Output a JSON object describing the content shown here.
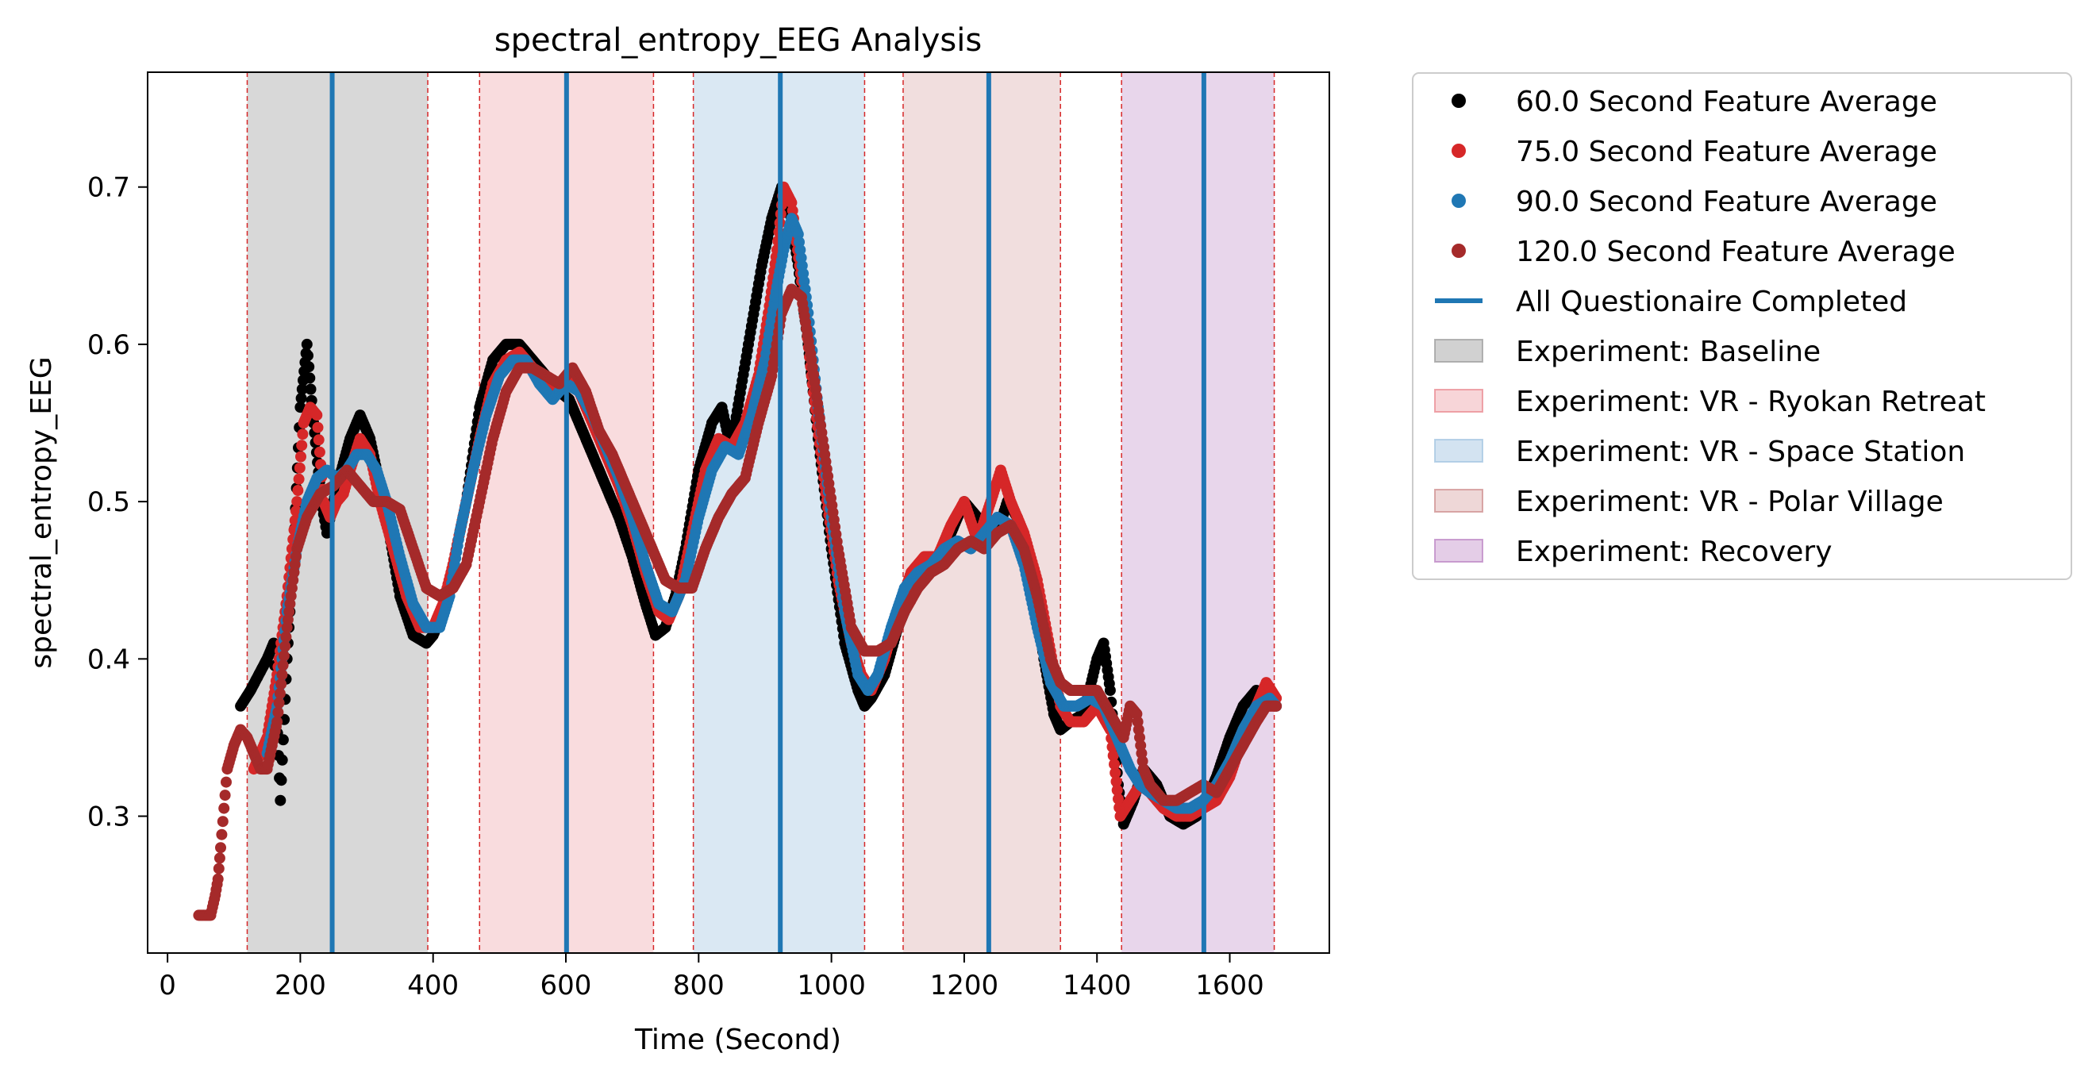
{
  "chart_data": {
    "type": "scatter",
    "title": "spectral_entropy_EEG Analysis",
    "xlabel": "Time (Second)",
    "ylabel": "spectral_entropy_EEG",
    "xlim": [
      -30,
      1750
    ],
    "ylim": [
      0.213,
      0.773
    ],
    "xticks": [
      0,
      200,
      400,
      600,
      800,
      1000,
      1200,
      1400,
      1600
    ],
    "yticks": [
      0.3,
      0.4,
      0.5,
      0.6,
      0.7
    ],
    "grid": false,
    "legend_position": "outside-right",
    "phases": [
      {
        "name": "Experiment: Baseline",
        "start": 120,
        "end": 392,
        "color": "#999999",
        "alpha": 0.38
      },
      {
        "name": "Experiment: VR - Ryokan Retreat",
        "start": 470,
        "end": 732,
        "color": "#e8828a",
        "alpha": 0.28
      },
      {
        "name": "Experiment: VR - Space Station",
        "start": 792,
        "end": 1050,
        "color": "#9ec2e0",
        "alpha": 0.38
      },
      {
        "name": "Experiment: VR - Polar Village",
        "start": 1108,
        "end": 1345,
        "color": "#cc8888",
        "alpha": 0.28
      },
      {
        "name": "Experiment: Recovery",
        "start": 1437,
        "end": 1667,
        "color": "#b87ec0",
        "alpha": 0.32
      }
    ],
    "vlines": {
      "name": "All Questionaire Completed",
      "x": [
        248,
        601,
        923,
        1237,
        1561
      ],
      "color": "#1f77b4"
    },
    "series": [
      {
        "name": "60.0 Second Feature Average",
        "color": "#000000",
        "x": [
          110,
          125,
          150,
          160,
          170,
          180,
          190,
          200,
          210,
          220,
          232,
          240,
          250,
          262,
          275,
          290,
          305,
          315,
          330,
          350,
          370,
          390,
          400,
          415,
          430,
          450,
          470,
          490,
          510,
          530,
          550,
          570,
          590,
          605,
          620,
          640,
          660,
          680,
          700,
          720,
          735,
          750,
          765,
          780,
          800,
          820,
          835,
          845,
          855,
          875,
          895,
          910,
          925,
          935,
          950,
          965,
          980,
          1000,
          1020,
          1040,
          1050,
          1060,
          1080,
          1100,
          1120,
          1140,
          1160,
          1180,
          1200,
          1220,
          1235,
          1250,
          1265,
          1280,
          1300,
          1320,
          1335,
          1345,
          1360,
          1380,
          1400,
          1410,
          1420,
          1432,
          1440,
          1455,
          1470,
          1490,
          1510,
          1530,
          1550,
          1565,
          1580,
          1600,
          1620,
          1640,
          1655,
          1670
        ],
        "y": [
          0.37,
          0.38,
          0.4,
          0.41,
          0.31,
          0.4,
          0.47,
          0.56,
          0.6,
          0.55,
          0.5,
          0.48,
          0.5,
          0.52,
          0.54,
          0.555,
          0.54,
          0.52,
          0.49,
          0.44,
          0.415,
          0.41,
          0.415,
          0.43,
          0.46,
          0.5,
          0.56,
          0.59,
          0.6,
          0.6,
          0.59,
          0.58,
          0.57,
          0.565,
          0.55,
          0.53,
          0.51,
          0.49,
          0.465,
          0.435,
          0.415,
          0.42,
          0.44,
          0.47,
          0.52,
          0.55,
          0.56,
          0.54,
          0.55,
          0.6,
          0.65,
          0.68,
          0.7,
          0.69,
          0.65,
          0.6,
          0.54,
          0.47,
          0.41,
          0.38,
          0.37,
          0.375,
          0.39,
          0.42,
          0.44,
          0.455,
          0.46,
          0.48,
          0.5,
          0.49,
          0.475,
          0.48,
          0.5,
          0.49,
          0.46,
          0.4,
          0.365,
          0.355,
          0.36,
          0.365,
          0.4,
          0.41,
          0.38,
          0.32,
          0.295,
          0.31,
          0.33,
          0.32,
          0.3,
          0.295,
          0.3,
          0.31,
          0.325,
          0.35,
          0.37,
          0.38,
          0.375,
          0.37
        ]
      },
      {
        "name": "75.0 Second Feature Average",
        "color": "#d62728",
        "x": [
          130,
          150,
          165,
          180,
          195,
          205,
          215,
          225,
          235,
          245,
          255,
          265,
          275,
          290,
          305,
          320,
          340,
          360,
          380,
          400,
          415,
          430,
          450,
          470,
          490,
          510,
          530,
          550,
          570,
          590,
          605,
          620,
          640,
          660,
          680,
          700,
          720,
          740,
          755,
          770,
          790,
          810,
          830,
          850,
          870,
          890,
          905,
          918,
          928,
          940,
          955,
          970,
          990,
          1010,
          1030,
          1045,
          1060,
          1080,
          1100,
          1120,
          1140,
          1160,
          1180,
          1200,
          1220,
          1240,
          1255,
          1270,
          1290,
          1310,
          1330,
          1345,
          1360,
          1380,
          1400,
          1420,
          1435,
          1450,
          1465,
          1480,
          1500,
          1520,
          1540,
          1560,
          1580,
          1600,
          1620,
          1640,
          1655,
          1670
        ],
        "y": [
          0.33,
          0.35,
          0.39,
          0.44,
          0.5,
          0.55,
          0.56,
          0.555,
          0.5,
          0.49,
          0.5,
          0.505,
          0.52,
          0.54,
          0.53,
          0.5,
          0.47,
          0.44,
          0.42,
          0.42,
          0.435,
          0.46,
          0.5,
          0.54,
          0.575,
          0.59,
          0.595,
          0.585,
          0.575,
          0.57,
          0.58,
          0.57,
          0.55,
          0.53,
          0.51,
          0.485,
          0.455,
          0.43,
          0.425,
          0.44,
          0.48,
          0.52,
          0.54,
          0.535,
          0.55,
          0.58,
          0.62,
          0.66,
          0.7,
          0.69,
          0.64,
          0.58,
          0.51,
          0.45,
          0.41,
          0.39,
          0.38,
          0.4,
          0.43,
          0.455,
          0.465,
          0.465,
          0.485,
          0.5,
          0.475,
          0.5,
          0.52,
          0.5,
          0.48,
          0.45,
          0.405,
          0.37,
          0.36,
          0.36,
          0.37,
          0.355,
          0.3,
          0.31,
          0.32,
          0.315,
          0.305,
          0.3,
          0.3,
          0.305,
          0.31,
          0.325,
          0.35,
          0.37,
          0.385,
          0.375
        ]
      },
      {
        "name": "90.0 Second Feature Average",
        "color": "#1f77b4",
        "x": [
          150,
          165,
          180,
          195,
          210,
          225,
          240,
          255,
          270,
          285,
          300,
          315,
          330,
          350,
          370,
          390,
          410,
          425,
          440,
          460,
          480,
          500,
          520,
          540,
          560,
          580,
          600,
          620,
          640,
          660,
          680,
          700,
          720,
          740,
          760,
          780,
          800,
          820,
          840,
          860,
          880,
          900,
          915,
          928,
          940,
          950,
          965,
          980,
          1000,
          1020,
          1040,
          1055,
          1070,
          1090,
          1110,
          1130,
          1150,
          1170,
          1190,
          1210,
          1230,
          1250,
          1270,
          1290,
          1310,
          1330,
          1350,
          1370,
          1390,
          1410,
          1430,
          1450,
          1465,
          1480,
          1500,
          1520,
          1540,
          1560,
          1580,
          1600,
          1620,
          1640,
          1660,
          1670
        ],
        "y": [
          0.34,
          0.37,
          0.43,
          0.47,
          0.5,
          0.515,
          0.52,
          0.515,
          0.52,
          0.53,
          0.53,
          0.52,
          0.5,
          0.465,
          0.435,
          0.42,
          0.42,
          0.44,
          0.48,
          0.52,
          0.555,
          0.58,
          0.59,
          0.59,
          0.575,
          0.565,
          0.575,
          0.57,
          0.555,
          0.535,
          0.515,
          0.49,
          0.46,
          0.435,
          0.43,
          0.45,
          0.49,
          0.52,
          0.535,
          0.53,
          0.555,
          0.59,
          0.63,
          0.66,
          0.68,
          0.67,
          0.62,
          0.56,
          0.49,
          0.43,
          0.39,
          0.38,
          0.39,
          0.42,
          0.445,
          0.455,
          0.46,
          0.47,
          0.475,
          0.47,
          0.48,
          0.49,
          0.485,
          0.46,
          0.42,
          0.385,
          0.37,
          0.37,
          0.375,
          0.37,
          0.35,
          0.33,
          0.32,
          0.315,
          0.31,
          0.305,
          0.305,
          0.31,
          0.32,
          0.335,
          0.355,
          0.37,
          0.375,
          0.37
        ]
      },
      {
        "name": "120.0 Second Feature Average",
        "color": "#a52a2a",
        "x": [
          47,
          55,
          65,
          72,
          76,
          80,
          85,
          90,
          100,
          110,
          120,
          130,
          140,
          150,
          165,
          180,
          195,
          210,
          230,
          250,
          270,
          290,
          310,
          330,
          350,
          370,
          390,
          410,
          430,
          450,
          470,
          490,
          510,
          530,
          550,
          570,
          590,
          610,
          630,
          650,
          670,
          690,
          710,
          730,
          750,
          770,
          790,
          810,
          830,
          850,
          870,
          890,
          910,
          925,
          940,
          955,
          970,
          990,
          1010,
          1030,
          1050,
          1070,
          1090,
          1110,
          1130,
          1150,
          1170,
          1190,
          1210,
          1230,
          1250,
          1270,
          1290,
          1310,
          1330,
          1345,
          1360,
          1380,
          1400,
          1420,
          1440,
          1450,
          1460,
          1470,
          1480,
          1500,
          1520,
          1540,
          1560,
          1580,
          1600,
          1620,
          1640,
          1655,
          1670
        ],
        "y": [
          0.237,
          0.237,
          0.237,
          0.25,
          0.26,
          0.28,
          0.305,
          0.33,
          0.345,
          0.355,
          0.35,
          0.34,
          0.33,
          0.33,
          0.36,
          0.42,
          0.47,
          0.49,
          0.505,
          0.51,
          0.52,
          0.51,
          0.5,
          0.5,
          0.495,
          0.47,
          0.445,
          0.44,
          0.445,
          0.46,
          0.5,
          0.54,
          0.57,
          0.585,
          0.585,
          0.58,
          0.575,
          0.585,
          0.57,
          0.545,
          0.53,
          0.51,
          0.49,
          0.47,
          0.45,
          0.445,
          0.445,
          0.47,
          0.49,
          0.505,
          0.515,
          0.55,
          0.58,
          0.62,
          0.635,
          0.63,
          0.59,
          0.53,
          0.47,
          0.42,
          0.405,
          0.405,
          0.41,
          0.43,
          0.445,
          0.455,
          0.46,
          0.47,
          0.475,
          0.47,
          0.48,
          0.485,
          0.47,
          0.44,
          0.4,
          0.385,
          0.38,
          0.38,
          0.38,
          0.365,
          0.35,
          0.37,
          0.365,
          0.33,
          0.32,
          0.31,
          0.31,
          0.315,
          0.32,
          0.315,
          0.33,
          0.345,
          0.36,
          0.37,
          0.37
        ]
      }
    ]
  }
}
